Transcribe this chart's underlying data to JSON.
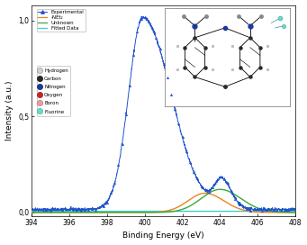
{
  "xlim": [
    394,
    408
  ],
  "ylim": [
    -0.02,
    1.08
  ],
  "xlabel": "Binding Energy (eV)",
  "ylabel": "Intensity (a.u.)",
  "yticks": [
    0.0,
    0.5,
    1.0
  ],
  "ytick_labels": [
    "0,0",
    "0,5",
    "1,0"
  ],
  "xticks": [
    394,
    396,
    398,
    400,
    402,
    404,
    406,
    408
  ],
  "experimental_color": "#2255cc",
  "net2_color": "#e8861a",
  "unknown_color": "#3aaa3a",
  "fitted_color": "#44cccc",
  "legend_items": [
    {
      "label": "Experimental",
      "color": "#2255cc",
      "marker": "^",
      "linestyle": "-"
    },
    {
      "label": "-NEt₂",
      "color": "#e8861a",
      "marker": "None",
      "linestyle": "-"
    },
    {
      "label": "Unknown",
      "color": "#3aaa3a",
      "marker": "None",
      "linestyle": "-"
    },
    {
      "label": "Fitted Data",
      "color": "#44cccc",
      "marker": "None",
      "linestyle": "-"
    }
  ],
  "atom_legend": [
    {
      "label": "Hydrogen",
      "color": "#d0d0d0",
      "edgecolor": "#888888"
    },
    {
      "label": "Carbon",
      "color": "#2a2a2a",
      "edgecolor": "#000000"
    },
    {
      "label": "Nitrogen",
      "color": "#1a3a9a",
      "edgecolor": "#0a1a6a"
    },
    {
      "label": "Oxygen",
      "color": "#cc2222",
      "edgecolor": "#881111"
    },
    {
      "label": "Boron",
      "color": "#e8a0a0",
      "edgecolor": "#b06060"
    },
    {
      "label": "Fluorine",
      "color": "#70d8c8",
      "edgecolor": "#30a898"
    }
  ]
}
